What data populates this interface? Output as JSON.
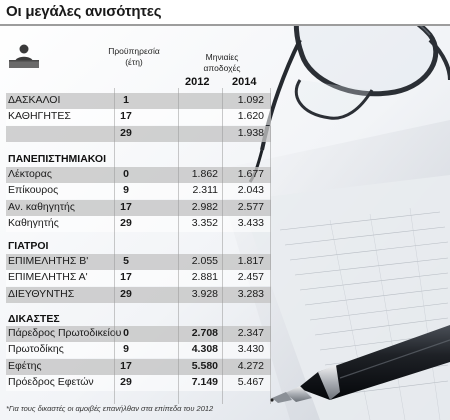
{
  "title": "Οι μεγάλες ανισότητες",
  "headers": {
    "experience": [
      "Προϋπηρεσία",
      "(έτη)"
    ],
    "salaries": [
      "Μηνιαίες",
      "αποδοχές"
    ],
    "year1": "2012",
    "year2": "2014"
  },
  "sections": [
    {
      "title": "ΔΑΣΚΑΛΟΙ",
      "rows": [
        {
          "label": "ΔΑΣΚΑΛΟΙ",
          "exp": "1",
          "v2012": "",
          "v2014": "1.092"
        },
        {
          "label": "ΚΑΘΗΓΗΤΕΣ",
          "exp": "17",
          "v2012": "",
          "v2014": "1.620"
        },
        {
          "label": "",
          "exp": "29",
          "v2012": "",
          "v2014": "1.938"
        }
      ]
    },
    {
      "title": "ΠΑΝΕΠΙΣΤΗΜΙΑΚΟΙ",
      "rows": [
        {
          "label": "Λέκτορας",
          "exp": "0",
          "v2012": "1.862",
          "v2014": "1.677"
        },
        {
          "label": "Επίκουρος",
          "exp": "9",
          "v2012": "2.311",
          "v2014": "2.043"
        },
        {
          "label": "Αν. καθηγητής",
          "exp": "17",
          "v2012": "2.982",
          "v2014": "2.577"
        },
        {
          "label": "Καθηγητής",
          "exp": "29",
          "v2012": "3.352",
          "v2014": "3.433"
        }
      ]
    },
    {
      "title": "ΓΙΑΤΡΟΙ",
      "rows": [
        {
          "label": "ΕΠΙΜΕΛΗΤΗΣ Β'",
          "exp": "5",
          "v2012": "2.055",
          "v2014": "1.817"
        },
        {
          "label": "ΕΠΙΜΕΛΗΤΗΣ Α'",
          "exp": "17",
          "v2012": "2.881",
          "v2014": "2.457"
        },
        {
          "label": "ΔΙΕΥΘΥΝΤΗΣ",
          "exp": "29",
          "v2012": "3.928",
          "v2014": "3.283"
        }
      ]
    },
    {
      "title": "ΔΙΚΑΣΤΕΣ",
      "rows": [
        {
          "label": "Πάρεδρος Πρωτοδικείου",
          "exp": "0",
          "v2012": "2.708",
          "v2014": "2.347"
        },
        {
          "label": "Πρωτοδίκης",
          "exp": "9",
          "v2012": "4.308",
          "v2014": "3.430"
        },
        {
          "label": "Εφέτης",
          "exp": "17",
          "v2012": "5.580",
          "v2014": "4.272"
        },
        {
          "label": "Πρόεδρος Εφετών",
          "exp": "29",
          "v2012": "7.149",
          "v2014": "5.467"
        }
      ]
    }
  ],
  "footnote": "*Για τους δικαστές οι αμοιβές επανήλθαν στα επίπεδα του 2012",
  "colors": {
    "shade": "#c4c4c4",
    "title_rule": "#9d9d9d"
  },
  "icons": [
    "person-at-desk-icon",
    "eyeglasses-illustration",
    "pen-illustration"
  ]
}
